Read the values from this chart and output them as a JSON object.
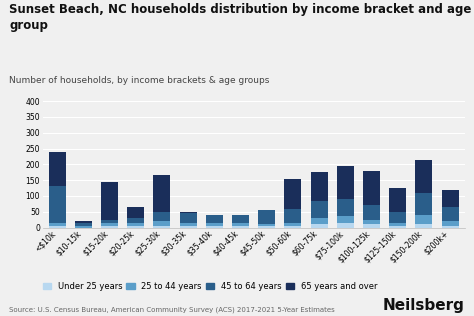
{
  "title": "Sunset Beach, NC households distribution by income bracket and age\ngroup",
  "subtitle": "Number of households, by income brackets & age groups",
  "source": "Source: U.S. Census Bureau, American Community Survey (ACS) 2017-2021 5-Year Estimates",
  "categories": [
    "<$10k",
    "$10-15k",
    "$15-20k",
    "$20-25k",
    "$25-30k",
    "$30-35k",
    "$35-40k",
    "$40-45k",
    "$45-50k",
    "$50-60k",
    "$60-75k",
    "$75-100k",
    "$100-125k",
    "$125-150k",
    "$150-200k",
    "$200k+"
  ],
  "age_groups": [
    "Under 25 years",
    "25 to 44 years",
    "45 to 64 years",
    "65 years and over"
  ],
  "colors": [
    "#b8d8f0",
    "#5b9ec9",
    "#2a5e8a",
    "#1a2e5a"
  ],
  "data": {
    "Under 25 years": [
      5,
      0,
      5,
      5,
      5,
      5,
      5,
      5,
      5,
      5,
      10,
      15,
      10,
      5,
      10,
      5
    ],
    "25 to 44 years": [
      10,
      5,
      10,
      10,
      15,
      10,
      10,
      10,
      5,
      10,
      20,
      20,
      15,
      10,
      30,
      15
    ],
    "45 to 64 years": [
      115,
      10,
      10,
      15,
      30,
      30,
      25,
      25,
      45,
      45,
      55,
      55,
      45,
      35,
      70,
      45
    ],
    "65 years and over": [
      110,
      5,
      120,
      35,
      115,
      5,
      0,
      0,
      0,
      95,
      90,
      105,
      110,
      75,
      105,
      55
    ]
  },
  "ylim": [
    0,
    420
  ],
  "yticks": [
    0,
    50,
    100,
    150,
    200,
    250,
    300,
    350,
    400
  ],
  "background_color": "#f0f0f0",
  "bar_width": 0.65,
  "title_fontsize": 8.5,
  "subtitle_fontsize": 6.5,
  "tick_fontsize": 5.5,
  "legend_fontsize": 6,
  "source_fontsize": 5,
  "neilsberg_fontsize": 11
}
